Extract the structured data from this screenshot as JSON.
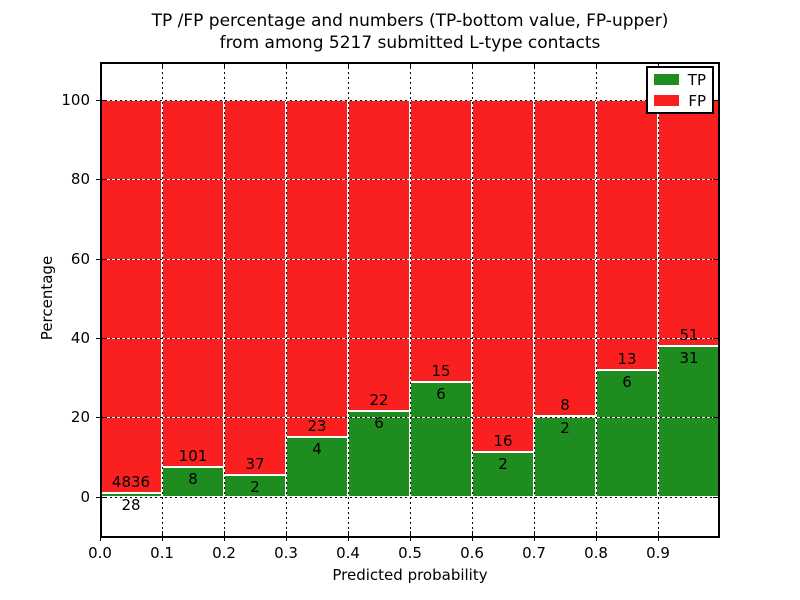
{
  "chart_data": {
    "type": "bar",
    "stacked": true,
    "normalized_to_percent": true,
    "title_line1": "TP /FP percentage and numbers (TP-bottom value, FP-upper)",
    "title_line2": "from among 5217 submitted L-type contacts",
    "xlabel": "Predicted probability",
    "ylabel": "Percentage",
    "total_contacts": 5217,
    "bin_width": 0.1,
    "bin_starts": [
      0.0,
      0.1,
      0.2,
      0.3,
      0.4,
      0.5,
      0.6,
      0.7,
      0.8,
      0.9
    ],
    "x_tick_labels": [
      "0.0",
      "0.1",
      "0.2",
      "0.3",
      "0.4",
      "0.5",
      "0.6",
      "0.7",
      "0.8",
      "0.9"
    ],
    "y_tick_values": [
      0,
      20,
      40,
      60,
      80,
      100
    ],
    "xlim": [
      0.0,
      1.0
    ],
    "ylim": [
      -10.4,
      109.6
    ],
    "grid": "dotted",
    "series": [
      {
        "name": "TP",
        "color": "#1e8c1e",
        "counts": [
          28,
          8,
          2,
          4,
          6,
          6,
          2,
          2,
          6,
          31
        ]
      },
      {
        "name": "FP",
        "color": "#fb2020",
        "counts": [
          4836,
          101,
          37,
          23,
          22,
          15,
          16,
          8,
          13,
          51
        ]
      }
    ],
    "tp_percent_per_bin": [
      0.58,
      7.34,
      5.13,
      14.81,
      21.43,
      28.57,
      11.11,
      20.0,
      31.58,
      37.8
    ],
    "legend": {
      "position": "upper right",
      "entries": [
        "TP",
        "FP"
      ]
    },
    "colors": {
      "tp_green": "#1e8c1e",
      "fp_red": "#fb2020",
      "grid": "#000000",
      "background": "#ffffff"
    }
  }
}
